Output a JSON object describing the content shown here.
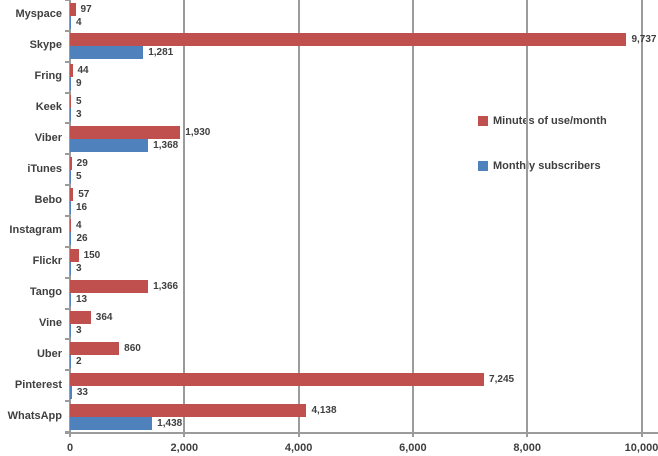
{
  "chart_data": {
    "type": "bar",
    "orientation": "horizontal",
    "title": "",
    "xlabel": "",
    "ylabel": "",
    "categories": [
      "Myspace",
      "Skype",
      "Fring",
      "Keek",
      "Viber",
      "iTunes",
      "Bebo",
      "Instagram",
      "Flickr",
      "Tango",
      "Vine",
      "Uber",
      "Pinterest",
      "WhatsApp"
    ],
    "series": [
      {
        "name": "Minutes of use/month",
        "color": "#c0504d",
        "values": [
          97,
          9737,
          44,
          5,
          1930,
          29,
          57,
          4,
          150,
          1366,
          364,
          860,
          7245,
          4138
        ],
        "labels": [
          "97",
          "9,737",
          "44",
          "5",
          "1,930",
          "29",
          "57",
          "4",
          "150",
          "1,366",
          "364",
          "860",
          "7,245",
          "4,138"
        ]
      },
      {
        "name": "Monthly subscribers",
        "color": "#4f81bd",
        "values": [
          4,
          1281,
          9,
          3,
          1368,
          5,
          16,
          26,
          3,
          13,
          3,
          2,
          33,
          1438
        ],
        "labels": [
          "4",
          "1,281",
          "9",
          "3",
          "1,368",
          "5",
          "16",
          "26",
          "3",
          "13",
          "3",
          "2",
          "33",
          "1,438"
        ]
      }
    ],
    "xlim": [
      0,
      10000
    ],
    "x_tick_values": [
      0,
      2000,
      4000,
      6000,
      8000,
      10000
    ],
    "x_tick_labels": [
      "0",
      "2,000",
      "4,000",
      "6,000",
      "8,000",
      "10,000"
    ],
    "grid": true,
    "legend_position": "middle-right",
    "colors": {
      "grid": "#9b9b9b",
      "axis": "#9b9b9b",
      "text": "#3f3f3f"
    }
  }
}
